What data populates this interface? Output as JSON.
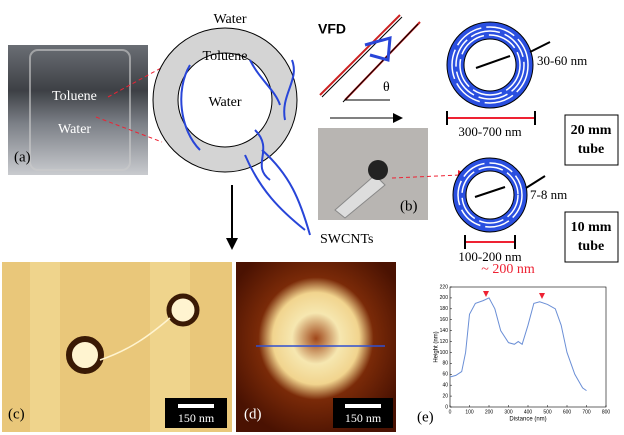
{
  "labels": {
    "a_toluene": "Toluene",
    "a_water": "Water",
    "a_tag": "(a)",
    "ring_outer_water": "Water",
    "ring_toluene": "Toluene",
    "ring_inner_water": "Water",
    "vfd": "VFD",
    "theta": "θ",
    "b_tag": "(b)",
    "swcnts": "SWCNTs",
    "wall_20": "30-60 nm",
    "diam_20": "300-700 nm",
    "tube_20": [
      "20 mm",
      "tube"
    ],
    "wall_10": "7-8 nm",
    "diam_10": "100-200 nm",
    "tube_10": [
      "10 mm",
      "tube"
    ],
    "c_tag": "(c)",
    "c_scale": "150 nm",
    "d_tag": "(d)",
    "d_scale": "150 nm",
    "e_tag": "(e)"
  },
  "chart_data": {
    "type": "line",
    "annotation": "~ 200 nm",
    "x_label": "Distance (nm)",
    "y_label": "Height (nm)",
    "x": [
      0,
      30,
      60,
      80,
      100,
      130,
      170,
      200,
      230,
      260,
      300,
      330,
      350,
      370,
      400,
      430,
      460,
      500,
      540,
      570,
      600,
      640,
      680,
      700
    ],
    "series": [
      {
        "color": "#6b8fd6",
        "values": [
          55,
          58,
          65,
          100,
          170,
          190,
          195,
          200,
          180,
          140,
          118,
          115,
          120,
          115,
          150,
          190,
          193,
          188,
          180,
          150,
          100,
          60,
          35,
          30
        ]
      }
    ],
    "xlim": [
      0,
      800
    ],
    "ylim": [
      0,
      220
    ],
    "xticks": [
      0,
      100,
      200,
      300,
      400,
      500,
      600,
      700,
      800
    ],
    "yticks": [
      0,
      20,
      40,
      60,
      80,
      100,
      120,
      140,
      160,
      180,
      200,
      220
    ]
  }
}
